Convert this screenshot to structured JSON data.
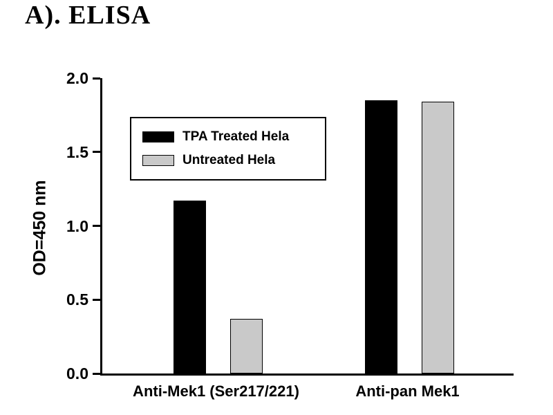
{
  "title": "A). ELISA",
  "chart_data": {
    "type": "bar",
    "title": "A). ELISA",
    "categories": [
      "Anti-Mek1 (Ser217/221)",
      "Anti-pan Mek1"
    ],
    "series": [
      {
        "name": "TPA Treated Hela",
        "color": "#000000",
        "values": [
          1.17,
          1.85
        ]
      },
      {
        "name": "Untreated Hela",
        "color": "#c9c9c9",
        "values": [
          0.37,
          1.84
        ]
      }
    ],
    "xlabel": "",
    "ylabel": "OD=450 nm",
    "ylim": [
      0,
      2.0
    ],
    "yticks": [
      "0.0",
      "0.5",
      "1.0",
      "1.5",
      "2.0"
    ],
    "grid": false,
    "legend_position": "upper-left-inside"
  }
}
